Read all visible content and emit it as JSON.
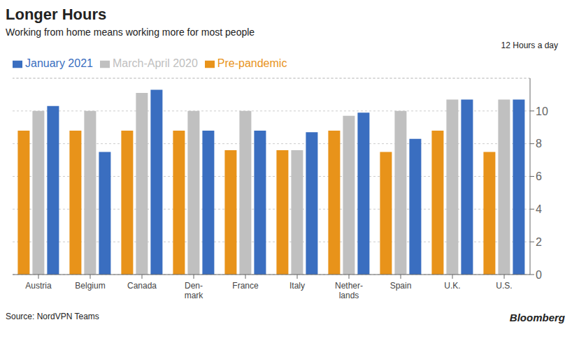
{
  "chart_data": {
    "type": "bar",
    "title": "Longer Hours",
    "subtitle": "Working from home means working more for most people",
    "y_label": "12 Hours a day",
    "annotations": [
      "Source: NordVPN Teams",
      "Bloomberg"
    ],
    "categories": [
      "Austria",
      "Belgium",
      "Canada",
      "Den-\nmark",
      "France",
      "Italy",
      "Nether-\nlands",
      "Spain",
      "U.K.",
      "U.S."
    ],
    "series": [
      {
        "name": "Pre-pandemic",
        "color": "#E8931A",
        "values": [
          8.8,
          8.8,
          8.8,
          8.8,
          7.6,
          7.6,
          8.8,
          7.5,
          8.8,
          7.5
        ]
      },
      {
        "name": "March-April 2020",
        "color": "#C0C0C0",
        "values": [
          10.0,
          10.0,
          11.1,
          10.0,
          10.0,
          7.6,
          9.7,
          10.0,
          10.7,
          10.7
        ]
      },
      {
        "name": "January 2021",
        "color": "#3A6EC0",
        "values": [
          10.3,
          7.5,
          11.3,
          8.8,
          8.8,
          8.7,
          9.9,
          8.3,
          10.7,
          10.7
        ]
      }
    ],
    "ylim": [
      0,
      12
    ],
    "yticks": [
      0,
      2,
      4,
      6,
      8,
      10
    ],
    "grid": true,
    "legend": "top"
  }
}
